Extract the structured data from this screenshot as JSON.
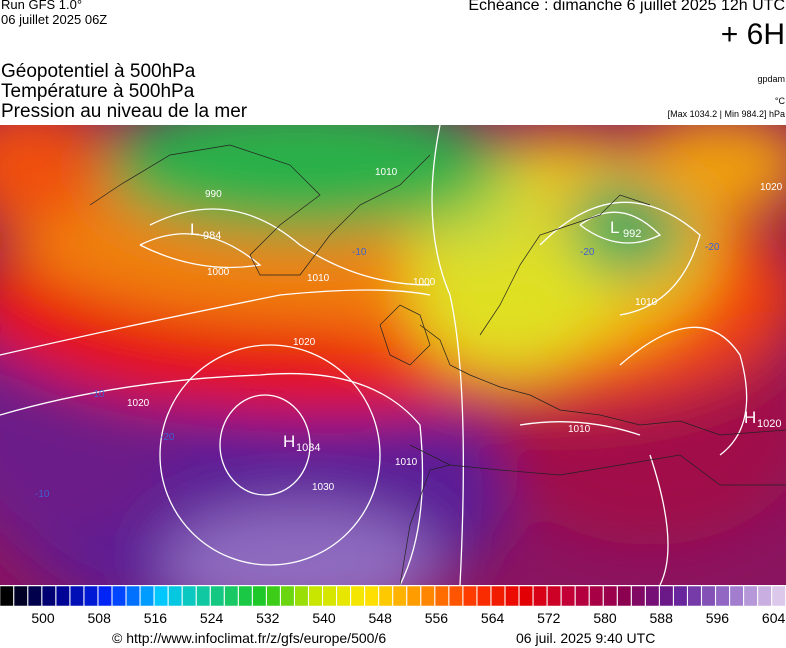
{
  "header": {
    "run": "Run GFS 1.0°",
    "run_date": "06 juillet 2025 06Z",
    "forecast": "Echéance : dimanche 6 juillet 2025 12h UTC",
    "lead": "+ 6H",
    "fields": [
      "Géopotentiel à 500hPa",
      "Température à 500hPa",
      "Pression au niveau de la mer"
    ],
    "units_geo": "gpdam",
    "units_temp": "°C",
    "pressure_range": "[Max 1034.2 | Min 984.2] hPa"
  },
  "map": {
    "centers": [
      {
        "type": "H",
        "value": 1034
      },
      {
        "type": "L",
        "value": 984
      },
      {
        "type": "L",
        "value": 992
      },
      {
        "type": "H",
        "value": 1020
      }
    ],
    "isobar_labels": [
      990,
      1000,
      1010,
      1020,
      1030,
      1010,
      1000,
      1010,
      1020,
      1010,
      1010,
      1020
    ],
    "temp_labels": [
      -20,
      -10,
      -10,
      -10,
      -20,
      -20
    ]
  },
  "colorbar": {
    "labels": [
      500,
      508,
      516,
      524,
      532,
      540,
      548,
      556,
      564,
      572,
      580,
      588,
      596,
      604
    ]
  },
  "footer": {
    "source": "© http://www.infoclimat.fr/z/gfs/europe/500/6",
    "generated": "06 juil. 2025  9:40 UTC"
  }
}
